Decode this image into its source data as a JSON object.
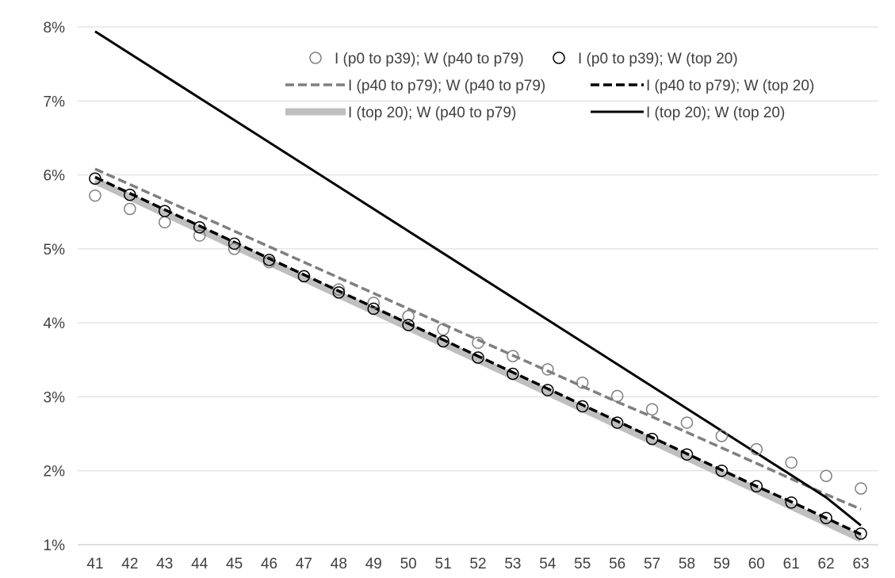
{
  "chart_data": {
    "type": "line",
    "title": "",
    "xlabel": "",
    "ylabel": "",
    "x": [
      41,
      42,
      43,
      44,
      45,
      46,
      47,
      48,
      49,
      50,
      51,
      52,
      53,
      54,
      55,
      56,
      57,
      58,
      59,
      60,
      61,
      62,
      63
    ],
    "x_tick_labels": [
      "41",
      "42",
      "43",
      "44",
      "45",
      "46",
      "47",
      "48",
      "49",
      "50",
      "51",
      "52",
      "53",
      "54",
      "55",
      "56",
      "57",
      "58",
      "59",
      "60",
      "61",
      "62",
      "63"
    ],
    "ylim": [
      0.01,
      0.08
    ],
    "y_ticks": [
      0.01,
      0.02,
      0.03,
      0.04,
      0.05,
      0.06,
      0.07,
      0.08
    ],
    "y_tick_labels": [
      "1%",
      "2%",
      "3%",
      "4%",
      "5%",
      "6%",
      "7%",
      "8%"
    ],
    "grid": "horizontal",
    "legend_position": "top-right",
    "series": [
      {
        "name": "I (p0 to p39); W (p40 to p79)",
        "style": "hollow-marker",
        "color": "#7f7f7f",
        "values": [
          0.0572,
          0.0554,
          0.0536,
          0.0518,
          0.05,
          0.0482,
          0.0463,
          0.0445,
          0.0427,
          0.0409,
          0.0391,
          0.0373,
          0.0355,
          0.0337,
          0.0319,
          0.0301,
          0.0283,
          0.0265,
          0.0247,
          0.0229,
          0.0211,
          0.0193,
          0.0176
        ]
      },
      {
        "name": "I (p0 to p39); W (top 20)",
        "style": "hollow-marker",
        "color": "#000000",
        "values": [
          0.0595,
          0.0573,
          0.0551,
          0.0529,
          0.0507,
          0.0485,
          0.0463,
          0.0441,
          0.0419,
          0.0397,
          0.0375,
          0.0353,
          0.0331,
          0.0309,
          0.0287,
          0.0265,
          0.0243,
          0.0222,
          0.02,
          0.0179,
          0.0157,
          0.0136,
          0.0115
        ]
      },
      {
        "name": "I (p40 to p79); W (p40 to p79)",
        "style": "dashed",
        "color": "#7f7f7f",
        "values": [
          0.0608,
          0.0587,
          0.0566,
          0.0545,
          0.0524,
          0.0503,
          0.0482,
          0.0461,
          0.044,
          0.0419,
          0.0398,
          0.0377,
          0.0356,
          0.0335,
          0.0314,
          0.0293,
          0.0273,
          0.0252,
          0.0231,
          0.021,
          0.0189,
          0.0168,
          0.0148
        ]
      },
      {
        "name": "I (p40 to p79); W (top 20)",
        "style": "dashed",
        "color": "#000000",
        "values": [
          0.0597,
          0.0575,
          0.0553,
          0.0531,
          0.0509,
          0.0487,
          0.0465,
          0.0443,
          0.0421,
          0.0399,
          0.0377,
          0.0355,
          0.0333,
          0.0311,
          0.0289,
          0.0267,
          0.0245,
          0.0223,
          0.0201,
          0.0179,
          0.0158,
          0.0136,
          0.0114
        ]
      },
      {
        "name": "I (top 20); W (p40 to p79)",
        "style": "thick-solid",
        "color": "#bfbfbf",
        "values": [
          0.0592,
          0.057,
          0.0548,
          0.0526,
          0.0504,
          0.0482,
          0.046,
          0.0438,
          0.0416,
          0.0394,
          0.0372,
          0.035,
          0.0328,
          0.0306,
          0.0284,
          0.0262,
          0.024,
          0.0218,
          0.0196,
          0.0174,
          0.0152,
          0.013,
          0.0108
        ]
      },
      {
        "name": "I (top 20); W (top 20)",
        "style": "solid",
        "color": "#000000",
        "values": [
          0.0794,
          0.0764,
          0.0734,
          0.0704,
          0.0674,
          0.0644,
          0.0614,
          0.0584,
          0.0554,
          0.0524,
          0.0494,
          0.0464,
          0.0434,
          0.0404,
          0.0374,
          0.0344,
          0.0314,
          0.0284,
          0.0254,
          0.0224,
          0.0194,
          0.0164,
          0.0126
        ]
      }
    ]
  }
}
